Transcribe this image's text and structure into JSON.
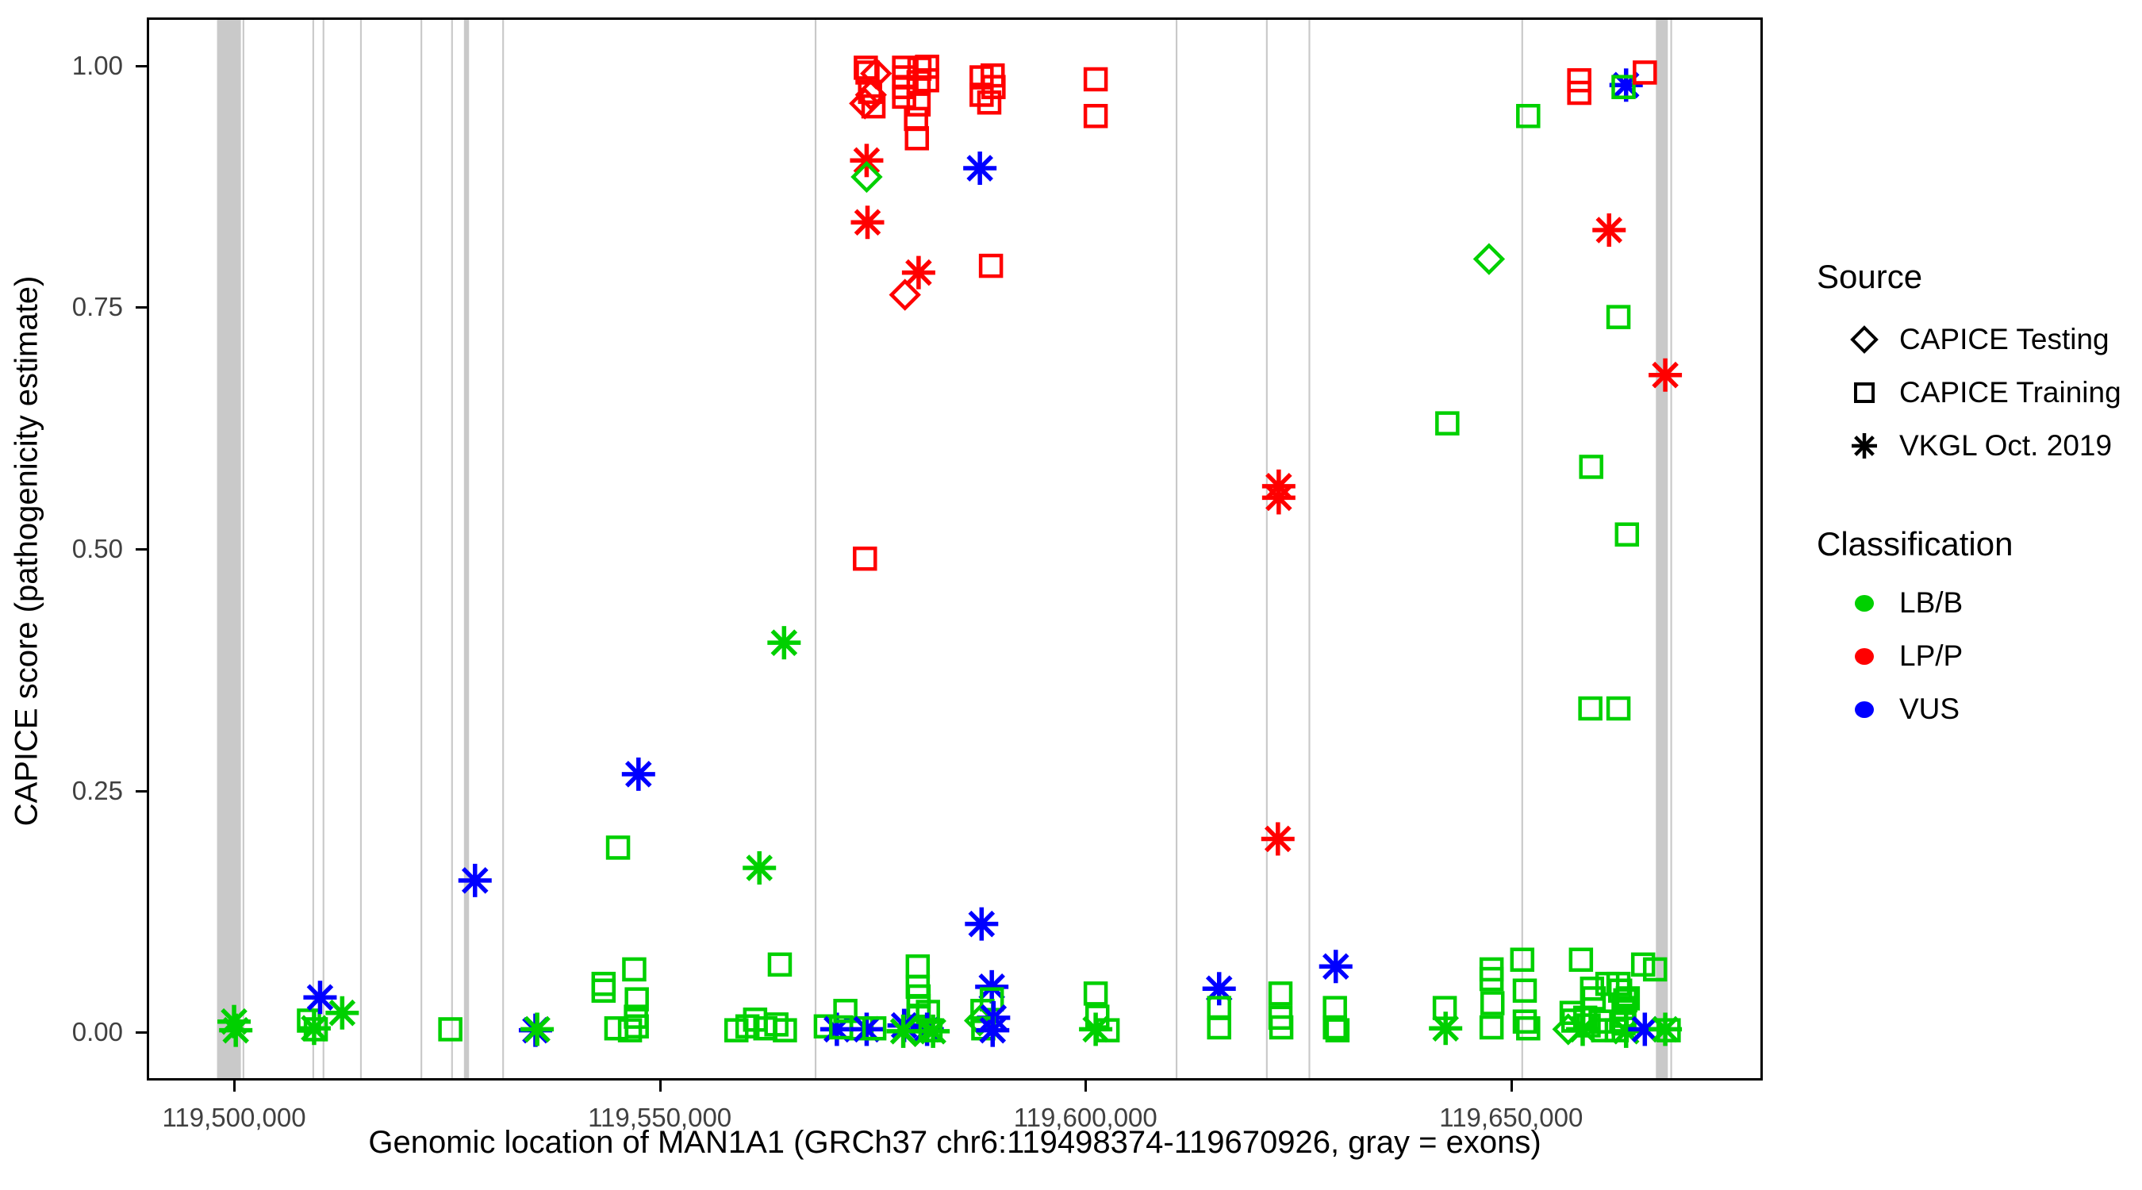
{
  "chart_data": {
    "type": "scatter",
    "title": "",
    "xlabel": "Genomic location of MAN1A1 (GRCh37 chr6:119498374-119670926, gray = exons)",
    "ylabel": "CAPICE score (pathogenicity estimate)",
    "x_domain": [
      119489746,
      119679554
    ],
    "y_domain": [
      -0.05,
      1.05
    ],
    "grid": false,
    "x_ticks": [
      {
        "value": 119500000,
        "label": "119,500,000"
      },
      {
        "value": 119550000,
        "label": "119,550,000"
      },
      {
        "value": 119600000,
        "label": "119,600,000"
      },
      {
        "value": 119650000,
        "label": "119,650,000"
      }
    ],
    "y_ticks": [
      {
        "value": 0.0,
        "label": "0.00"
      },
      {
        "value": 0.25,
        "label": "0.25"
      },
      {
        "value": 0.5,
        "label": "0.50"
      },
      {
        "value": 0.75,
        "label": "0.75"
      },
      {
        "value": 1.0,
        "label": "1.00"
      }
    ],
    "exons_note": "gray vertical bands = exons (genomic ranges in bp)",
    "exons": [
      {
        "start": 119498000,
        "end": 119500800
      },
      {
        "start": 119501000,
        "end": 119501200
      },
      {
        "start": 119509200,
        "end": 119509400
      },
      {
        "start": 119510400,
        "end": 119510600
      },
      {
        "start": 119514800,
        "end": 119515000
      },
      {
        "start": 119521900,
        "end": 119522100
      },
      {
        "start": 119525500,
        "end": 119525700
      },
      {
        "start": 119527000,
        "end": 119527600
      },
      {
        "start": 119531500,
        "end": 119531700
      },
      {
        "start": 119568200,
        "end": 119568400
      },
      {
        "start": 119610600,
        "end": 119610800
      },
      {
        "start": 119621200,
        "end": 119621400
      },
      {
        "start": 119626200,
        "end": 119626400
      },
      {
        "start": 119651200,
        "end": 119651400
      },
      {
        "start": 119667000,
        "end": 119668400
      },
      {
        "start": 119668700,
        "end": 119668900
      }
    ],
    "point_format": [
      "genomic_location",
      "capice_score",
      "source",
      "classification"
    ],
    "points": [
      [
        119500000,
        0.011,
        "vkgl",
        "LB/B"
      ],
      [
        119500200,
        0.002,
        "vkgl",
        "LB/B"
      ],
      [
        119508800,
        0.012,
        "training",
        "LB/B"
      ],
      [
        119509600,
        0.003,
        "training",
        "LB/B"
      ],
      [
        119509400,
        0.004,
        "vkgl",
        "LB/B"
      ],
      [
        119510100,
        0.036,
        "vkgl",
        "VUS"
      ],
      [
        119512700,
        0.02,
        "vkgl",
        "LB/B"
      ],
      [
        119525400,
        0.003,
        "training",
        "LB/B"
      ],
      [
        119528300,
        0.157,
        "vkgl",
        "VUS"
      ],
      [
        119535400,
        0.002,
        "vkgl",
        "VUS"
      ],
      [
        119535600,
        0.003,
        "vkgl",
        "LB/B"
      ],
      [
        119543400,
        0.05,
        "training",
        "LB/B"
      ],
      [
        119543400,
        0.043,
        "training",
        "LB/B"
      ],
      [
        119544900,
        0.004,
        "training",
        "LB/B"
      ],
      [
        119545100,
        0.191,
        "training",
        "LB/B"
      ],
      [
        119547000,
        0.065,
        "training",
        "LB/B"
      ],
      [
        119547300,
        0.034,
        "training",
        "LB/B"
      ],
      [
        119547200,
        0.016,
        "training",
        "LB/B"
      ],
      [
        119547300,
        0.006,
        "training",
        "LB/B"
      ],
      [
        119546500,
        0.002,
        "training",
        "LB/B"
      ],
      [
        119547500,
        0.267,
        "vkgl",
        "VUS"
      ],
      [
        119561700,
        0.17,
        "vkgl",
        "LB/B"
      ],
      [
        119564600,
        0.403,
        "vkgl",
        "LB/B"
      ],
      [
        119564100,
        0.07,
        "training",
        "LB/B"
      ],
      [
        119559000,
        0.002,
        "training",
        "LB/B"
      ],
      [
        119560300,
        0.006,
        "training",
        "LB/B"
      ],
      [
        119561200,
        0.013,
        "training",
        "LB/B"
      ],
      [
        119562400,
        0.004,
        "training",
        "LB/B"
      ],
      [
        119563700,
        0.008,
        "training",
        "LB/B"
      ],
      [
        119564700,
        0.002,
        "training",
        "LB/B"
      ],
      [
        119569500,
        0.006,
        "training",
        "LB/B"
      ],
      [
        119570800,
        0.003,
        "vkgl",
        "VUS"
      ],
      [
        119571300,
        0.005,
        "training",
        "LB/B"
      ],
      [
        119571800,
        0.022,
        "training",
        "LB/B"
      ],
      [
        119573700,
        0.004,
        "training",
        "LB/B"
      ],
      [
        119574300,
        0.003,
        "vkgl",
        "VUS"
      ],
      [
        119575200,
        0.004,
        "training",
        "LB/B"
      ],
      [
        119574200,
        0.998,
        "training",
        "LP/P"
      ],
      [
        119574400,
        0.993,
        "training",
        "LP/P"
      ],
      [
        119575400,
        0.992,
        "testing",
        "LP/P"
      ],
      [
        119574700,
        0.973,
        "training",
        "LP/P"
      ],
      [
        119574800,
        0.97,
        "testing",
        "LP/P"
      ],
      [
        119574100,
        0.961,
        "testing",
        "LP/P"
      ],
      [
        119575100,
        0.958,
        "training",
        "LP/P"
      ],
      [
        119574300,
        0.902,
        "vkgl",
        "LP/P"
      ],
      [
        119574300,
        0.885,
        "testing",
        "LB/B"
      ],
      [
        119574400,
        0.838,
        "vkgl",
        "LP/P"
      ],
      [
        119578700,
        0.998,
        "training",
        "LP/P"
      ],
      [
        119578700,
        0.988,
        "training",
        "LP/P"
      ],
      [
        119578700,
        0.978,
        "training",
        "LP/P"
      ],
      [
        119578700,
        0.968,
        "training",
        "LP/P"
      ],
      [
        119581400,
        0.999,
        "training",
        "LP/P"
      ],
      [
        119580500,
        0.997,
        "training",
        "LP/P"
      ],
      [
        119581400,
        0.985,
        "training",
        "LP/P"
      ],
      [
        119580400,
        0.983,
        "training",
        "LP/P"
      ],
      [
        119580400,
        0.96,
        "training",
        "LP/P"
      ],
      [
        119580100,
        0.945,
        "training",
        "LP/P"
      ],
      [
        119580200,
        0.925,
        "training",
        "LP/P"
      ],
      [
        119580400,
        0.786,
        "vkgl",
        "LP/P"
      ],
      [
        119578800,
        0.763,
        "testing",
        "LP/P"
      ],
      [
        119574100,
        0.49,
        "training",
        "LP/P"
      ],
      [
        119587600,
        0.894,
        "vkgl",
        "VUS"
      ],
      [
        119588900,
        0.793,
        "training",
        "LP/P"
      ],
      [
        119587800,
        0.988,
        "training",
        "LP/P"
      ],
      [
        119589100,
        0.99,
        "training",
        "LP/P"
      ],
      [
        119589200,
        0.978,
        "training",
        "LP/P"
      ],
      [
        119587800,
        0.97,
        "training",
        "LP/P"
      ],
      [
        119588700,
        0.962,
        "training",
        "LP/P"
      ],
      [
        119601200,
        0.986,
        "training",
        "LP/P"
      ],
      [
        119601200,
        0.948,
        "training",
        "LP/P"
      ],
      [
        119580300,
        0.068,
        "training",
        "LB/B"
      ],
      [
        119580300,
        0.047,
        "training",
        "LB/B"
      ],
      [
        119580400,
        0.037,
        "training",
        "LB/B"
      ],
      [
        119580400,
        0.027,
        "training",
        "LB/B"
      ],
      [
        119580400,
        0.017,
        "training",
        "LB/B"
      ],
      [
        119578700,
        0.007,
        "vkgl",
        "VUS"
      ],
      [
        119581400,
        0.003,
        "vkgl",
        "VUS"
      ],
      [
        119578600,
        0.001,
        "vkgl",
        "LB/B"
      ],
      [
        119580000,
        0.001,
        "testing",
        "LB/B"
      ],
      [
        119581800,
        0.002,
        "training",
        "LB/B"
      ],
      [
        119582100,
        0.001,
        "vkgl",
        "LB/B"
      ],
      [
        119581500,
        0.021,
        "training",
        "LB/B"
      ],
      [
        119587800,
        0.112,
        "vkgl",
        "VUS"
      ],
      [
        119589000,
        0.047,
        "vkgl",
        "VUS"
      ],
      [
        119589000,
        0.034,
        "training",
        "LB/B"
      ],
      [
        119587900,
        0.022,
        "training",
        "LB/B"
      ],
      [
        119587600,
        0.012,
        "testing",
        "LB/B"
      ],
      [
        119589200,
        0.015,
        "vkgl",
        "VUS"
      ],
      [
        119588000,
        0.004,
        "training",
        "LB/B"
      ],
      [
        119589100,
        0.002,
        "vkgl",
        "VUS"
      ],
      [
        119601200,
        0.04,
        "training",
        "LB/B"
      ],
      [
        119601400,
        0.016,
        "training",
        "LB/B"
      ],
      [
        119601200,
        0.003,
        "vkgl",
        "LB/B"
      ],
      [
        119602600,
        0.002,
        "training",
        "LB/B"
      ],
      [
        119615700,
        0.045,
        "vkgl",
        "VUS"
      ],
      [
        119615700,
        0.025,
        "training",
        "LB/B"
      ],
      [
        119615700,
        0.005,
        "training",
        "LB/B"
      ],
      [
        119622900,
        0.04,
        "training",
        "LB/B"
      ],
      [
        119622900,
        0.015,
        "training",
        "LB/B"
      ],
      [
        119623000,
        0.005,
        "training",
        "LB/B"
      ],
      [
        119629400,
        0.068,
        "vkgl",
        "VUS"
      ],
      [
        119629300,
        0.025,
        "training",
        "LB/B"
      ],
      [
        119629300,
        0.005,
        "training",
        "LB/B"
      ],
      [
        119629600,
        0.002,
        "training",
        "LB/B"
      ],
      [
        119642200,
        0.025,
        "training",
        "LB/B"
      ],
      [
        119642300,
        0.004,
        "vkgl",
        "LB/B"
      ],
      [
        119647700,
        0.065,
        "training",
        "LB/B"
      ],
      [
        119647700,
        0.055,
        "training",
        "LB/B"
      ],
      [
        119647800,
        0.03,
        "training",
        "LB/B"
      ],
      [
        119647700,
        0.005,
        "training",
        "LB/B"
      ],
      [
        119651300,
        0.075,
        "training",
        "LB/B"
      ],
      [
        119651600,
        0.043,
        "training",
        "LB/B"
      ],
      [
        119651600,
        0.011,
        "training",
        "LB/B"
      ],
      [
        119652000,
        0.004,
        "training",
        "LB/B"
      ],
      [
        119658200,
        0.075,
        "training",
        "LB/B"
      ],
      [
        119659500,
        0.045,
        "training",
        "LB/B"
      ],
      [
        119659700,
        0.035,
        "training",
        "LB/B"
      ],
      [
        119661300,
        0.05,
        "training",
        "LB/B"
      ],
      [
        119656700,
        0.003,
        "testing",
        "LB/B"
      ],
      [
        119657100,
        0.02,
        "training",
        "LB/B"
      ],
      [
        119657300,
        0.012,
        "training",
        "LB/B"
      ],
      [
        119658700,
        0.015,
        "training",
        "LB/B"
      ],
      [
        119659100,
        0.007,
        "training",
        "LB/B"
      ],
      [
        119660500,
        0.011,
        "training",
        "LB/B"
      ],
      [
        119660800,
        0.002,
        "training",
        "LB/B"
      ],
      [
        119658400,
        0.003,
        "vkgl",
        "LB/B"
      ],
      [
        119663400,
        0.033,
        "training",
        "LB/B"
      ],
      [
        119663200,
        0.025,
        "training",
        "LB/B"
      ],
      [
        119663300,
        0.017,
        "training",
        "LB/B"
      ],
      [
        119663200,
        0.009,
        "training",
        "LB/B"
      ],
      [
        119662400,
        0.002,
        "training",
        "LB/B"
      ],
      [
        119662600,
        0.05,
        "training",
        "LB/B"
      ],
      [
        119662800,
        0.043,
        "training",
        "LB/B"
      ],
      [
        119663700,
        0.035,
        "training",
        "LB/B"
      ],
      [
        119663500,
        0.001,
        "vkgl",
        "LB/B"
      ],
      [
        119665700,
        0.003,
        "vkgl",
        "VUS"
      ],
      [
        119668100,
        0.003,
        "vkgl",
        "LB/B"
      ],
      [
        119668500,
        0.002,
        "training",
        "LB/B"
      ],
      [
        119665500,
        0.07,
        "training",
        "LB/B"
      ],
      [
        119666900,
        0.065,
        "training",
        "LB/B"
      ],
      [
        119642500,
        0.63,
        "training",
        "LB/B"
      ],
      [
        119647400,
        0.8,
        "testing",
        "LB/B"
      ],
      [
        119652000,
        0.948,
        "training",
        "LB/B"
      ],
      [
        119658000,
        0.985,
        "training",
        "LP/P"
      ],
      [
        119658000,
        0.972,
        "training",
        "LP/P"
      ],
      [
        119663500,
        0.98,
        "vkgl",
        "VUS"
      ],
      [
        119663200,
        0.978,
        "training",
        "LB/B"
      ],
      [
        119665700,
        0.993,
        "training",
        "LP/P"
      ],
      [
        119661500,
        0.83,
        "vkgl",
        "LP/P"
      ],
      [
        119662600,
        0.74,
        "training",
        "LB/B"
      ],
      [
        119668100,
        0.68,
        "vkgl",
        "LP/P"
      ],
      [
        119659400,
        0.585,
        "training",
        "LB/B"
      ],
      [
        119663600,
        0.515,
        "training",
        "LB/B"
      ],
      [
        119659300,
        0.335,
        "training",
        "LB/B"
      ],
      [
        119662600,
        0.335,
        "training",
        "LB/B"
      ],
      [
        119622700,
        0.565,
        "vkgl",
        "LP/P"
      ],
      [
        119622700,
        0.553,
        "vkgl",
        "LP/P"
      ],
      [
        119622600,
        0.2,
        "vkgl",
        "LP/P"
      ]
    ]
  },
  "legend": {
    "source": {
      "title": "Source",
      "items": [
        {
          "label": "CAPICE Testing",
          "shape": "diamond",
          "key": "testing"
        },
        {
          "label": "CAPICE Training",
          "shape": "square",
          "key": "training"
        },
        {
          "label": "VKGL Oct. 2019",
          "shape": "asterisk",
          "key": "vkgl"
        }
      ]
    },
    "classification": {
      "title": "Classification",
      "items": [
        {
          "label": "LB/B",
          "color": "#00D000"
        },
        {
          "label": "LP/P",
          "color": "#FF0000"
        },
        {
          "label": "VUS",
          "color": "#0000FF"
        }
      ]
    }
  },
  "colors": {
    "LB/B": "#00D000",
    "LP/P": "#FF0000",
    "VUS": "#0000FF",
    "exon": "#C9C9C9",
    "axis_text": "#404040",
    "panel_border": "#000000"
  }
}
